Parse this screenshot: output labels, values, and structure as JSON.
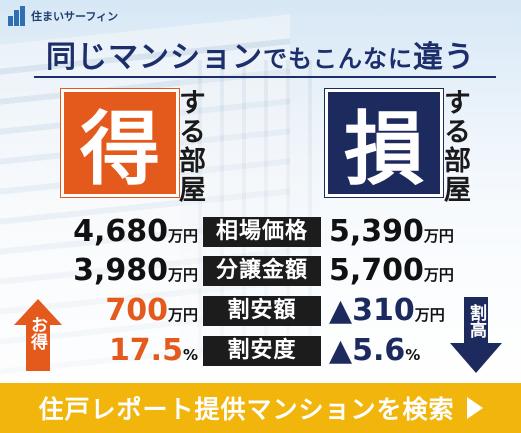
{
  "brand": {
    "logo_text": "住まいサーフィン"
  },
  "headline": {
    "main": "同じマンション",
    "sub": "でもこんなに",
    "end": "違う"
  },
  "toku_box": {
    "char": "得",
    "side_text": "する部屋"
  },
  "son_box": {
    "char": "損",
    "side_text": "する部屋"
  },
  "rows": [
    {
      "left_value": "4,680",
      "left_unit": "万円",
      "label": "相場価格",
      "right_value": "5,390",
      "right_unit": "万円"
    },
    {
      "left_value": "3,980",
      "left_unit": "万円",
      "label": "分譲金額",
      "right_value": "5,700",
      "right_unit": "万円"
    },
    {
      "left_value": "700",
      "left_unit": "万円",
      "label": "割安額",
      "right_value": "▲310",
      "right_unit": "万円"
    },
    {
      "left_value": "17.5",
      "left_unit": "%",
      "label": "割安度",
      "right_value": "▲5.6",
      "right_unit": "%"
    }
  ],
  "arrows": {
    "up_label": "お得",
    "down_label": "割高"
  },
  "cta": {
    "label": "住戸レポート提供マンションを検索"
  },
  "colors": {
    "accent_orange": "#e35a1c",
    "accent_navy": "#1d2a5e",
    "cta_yellow": "#f1b50c"
  }
}
